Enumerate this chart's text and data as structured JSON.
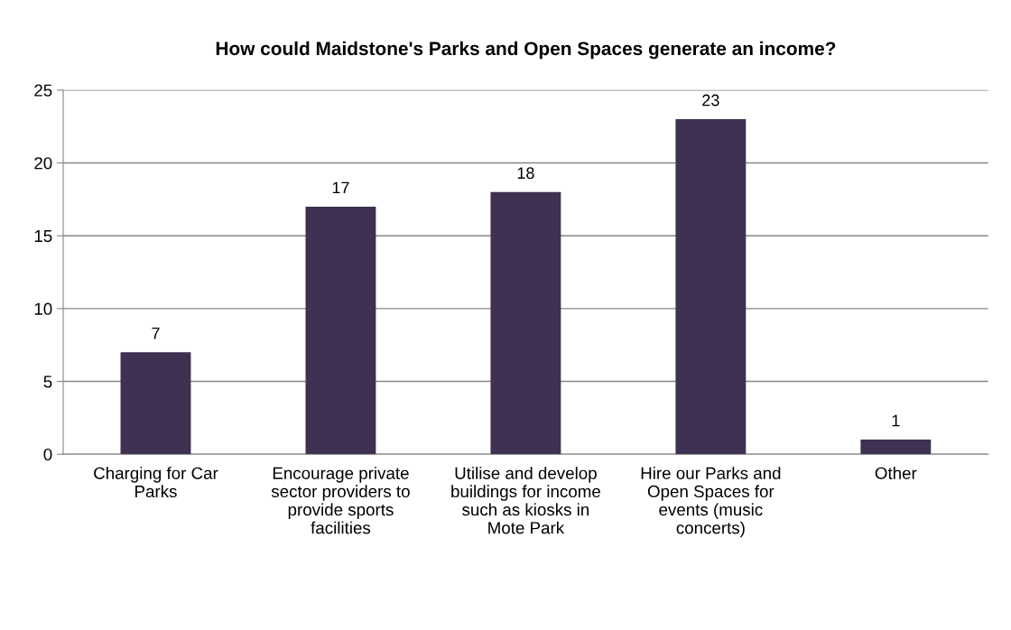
{
  "chart_data": {
    "type": "bar",
    "title": "How could Maidstone's Parks and Open Spaces generate an income?",
    "categories": [
      "Charging for Car Parks",
      "Encourage private sector providers to provide sports facilities",
      "Utilise and develop buildings for income such as kiosks in Mote Park",
      "Hire our Parks and Open Spaces for events (music concerts)",
      "Other"
    ],
    "values": [
      7,
      17,
      18,
      23,
      1
    ],
    "color": "#3f3151",
    "ylim": [
      0,
      25
    ],
    "yticks": [
      0,
      5,
      10,
      15,
      20,
      25
    ],
    "grid": "y",
    "data_labels": true,
    "legend": false
  }
}
